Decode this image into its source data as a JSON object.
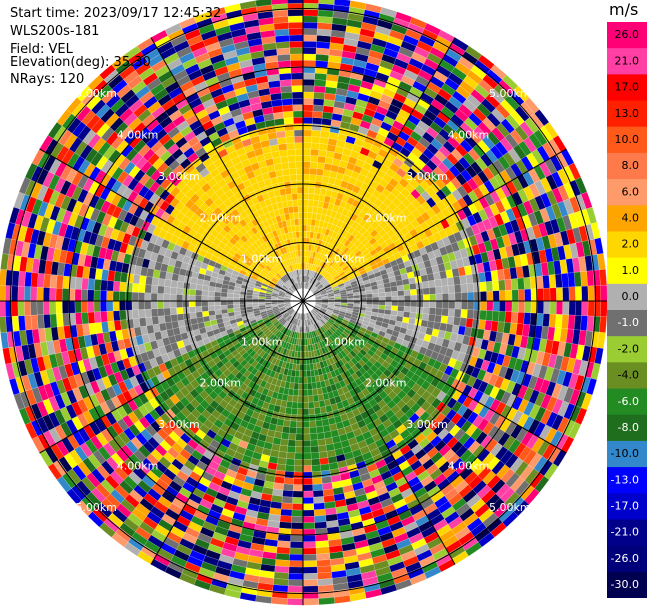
{
  "header": {
    "start_time": "Start time: 2023/09/17 12:45:32",
    "radar": "WLS200s-181",
    "field": "Field: VEL",
    "elevation": "Elevation(deg): 35.30",
    "nrays": "NRays: 120"
  },
  "colorbar": {
    "unit": "m/s",
    "ticks": [
      "26.0",
      "21.0",
      "17.0",
      "13.0",
      "10.0",
      "8.0",
      "6.0",
      "4.0",
      "2.0",
      "1.0",
      "0.0",
      "-1.0",
      "-2.0",
      "-4.0",
      "-6.0",
      "-8.0",
      "-10.0",
      "-13.0",
      "-17.0",
      "-21.0",
      "-26.0",
      "-30.0"
    ],
    "colors": [
      "#ff0077",
      "#ff3fa4",
      "#ff0000",
      "#ff2000",
      "#ff5a1a",
      "#ff7a4a",
      "#ff9a6a",
      "#ffa500",
      "#ffd700",
      "#ffff00",
      "#b0b0b0",
      "#707070",
      "#9acd32",
      "#6b8e23",
      "#228b22",
      "#1e6e1e",
      "#3388cc",
      "#0000ff",
      "#0000cd",
      "#00008b",
      "#00007a",
      "#000050"
    ]
  },
  "chart_data": {
    "type": "heatmap",
    "title": "",
    "projection": "polar (PPI)",
    "field": "VEL",
    "nrays": 120,
    "range_ring_labels": [
      "1.00km",
      "2.00km",
      "3.00km",
      "4.00km",
      "5.00km"
    ],
    "range_rings_km": [
      1,
      2,
      3,
      4,
      5
    ],
    "max_range_km": 5.2,
    "pattern": [
      {
        "sector": "north (approx 300-60 deg)",
        "range_km": [
          0.5,
          3.0
        ],
        "velocity_ms": [
          2,
          4
        ]
      },
      {
        "sector": "south (approx 120-240 deg)",
        "range_km": [
          0.5,
          3.0
        ],
        "velocity_ms": [
          -6,
          -2
        ]
      },
      {
        "sector": "east and west",
        "range_km": [
          0.2,
          2.5
        ],
        "velocity_ms": [
          -1,
          1
        ]
      },
      {
        "sector": "all",
        "range_km": [
          3.0,
          5.2
        ],
        "velocity_ms": "noise, full scale"
      }
    ],
    "grid": true
  }
}
